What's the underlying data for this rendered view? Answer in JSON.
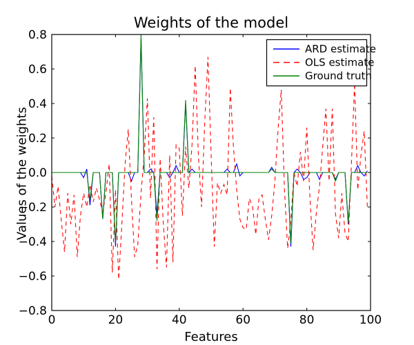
{
  "title": "Weights of the model",
  "chart_data": {
    "type": "line",
    "title": "Weights of the model",
    "xlabel": "Features",
    "ylabel": "Values of the weights",
    "xlim": [
      0,
      100
    ],
    "ylim": [
      -0.8,
      0.8
    ],
    "grid": false,
    "legend_position": "upper right",
    "xticks": {
      "values": [
        0,
        20,
        40,
        60,
        80,
        100
      ],
      "labels": [
        "0",
        "20",
        "40",
        "60",
        "80",
        "100"
      ]
    },
    "yticks": {
      "values": [
        0.8,
        0.6,
        0.4,
        0.2,
        0.0,
        -0.2,
        -0.4,
        -0.6,
        -0.8
      ],
      "labels": [
        "0.8",
        "0.6",
        "0.4",
        "0.2",
        "0.0",
        "−0.2",
        "−0.4",
        "−0.6",
        "−0.8"
      ]
    },
    "x_is_feature_index": true,
    "series": [
      {
        "id": "ard",
        "name": "ARD estimate",
        "color": "#0000ff",
        "style": "solid",
        "values": [
          0,
          0,
          0,
          0,
          0,
          0,
          0,
          0,
          0,
          0,
          -0.03,
          0.02,
          -0.19,
          0,
          0,
          0,
          -0.27,
          0,
          0,
          0,
          -0.43,
          0,
          0,
          0,
          0,
          -0.05,
          0,
          0,
          0.78,
          0,
          0,
          0.02,
          0,
          -0.24,
          0,
          0,
          0,
          -0.03,
          0,
          0.04,
          0,
          0,
          0.4,
          0,
          0.02,
          0,
          0,
          0,
          0,
          0,
          0,
          0,
          0,
          0,
          0,
          0.02,
          0,
          0,
          0.05,
          -0.02,
          0,
          0,
          0,
          0,
          0,
          0,
          0,
          0,
          0,
          0.03,
          0,
          0,
          0,
          0,
          0,
          -0.43,
          0,
          0.02,
          0,
          -0.04,
          -0.03,
          0,
          0,
          0,
          -0.04,
          0,
          0,
          0,
          0,
          -0.04,
          0,
          0,
          0,
          -0.3,
          0,
          0,
          0.04,
          0,
          -0.02,
          0.01
        ]
      },
      {
        "id": "ols",
        "name": "OLS estimate",
        "color": "#ff0000",
        "style": "dashed",
        "values": [
          -0.02,
          -0.2,
          -0.08,
          -0.28,
          -0.46,
          -0.12,
          -0.3,
          -0.13,
          -0.49,
          -0.25,
          -0.12,
          -0.2,
          -0.07,
          -0.17,
          -0.09,
          -0.16,
          -0.23,
          -0.12,
          0.05,
          -0.58,
          -0.1,
          -0.62,
          -0.3,
          0.05,
          0.25,
          -0.15,
          -0.49,
          -0.42,
          -0.12,
          0.1,
          0.43,
          -0.15,
          0.32,
          -0.56,
          0.08,
          -0.3,
          -0.55,
          0.1,
          -0.52,
          0.16,
          0.14,
          -0.25,
          0.15,
          -0.09,
          0.16,
          0.62,
          0.1,
          -0.2,
          0.3,
          0.67,
          0.1,
          -0.43,
          -0.06,
          -0.12,
          -0.07,
          -0.13,
          0.49,
          0.15,
          -0.1,
          -0.27,
          -0.32,
          -0.33,
          -0.15,
          -0.2,
          -0.36,
          -0.15,
          -0.13,
          -0.27,
          -0.39,
          -0.25,
          -0.05,
          0.25,
          0.48,
          -0.1,
          -0.44,
          -0.28,
          0.0,
          -0.08,
          0.12,
          -0.05,
          0.26,
          -0.15,
          -0.45,
          -0.23,
          -0.08,
          0.15,
          0.37,
          -0.05,
          0.37,
          -0.24,
          -0.38,
          -0.12,
          -0.35,
          -0.4,
          0.05,
          0.52,
          -0.1,
          0.1,
          0.24,
          -0.2
        ]
      },
      {
        "id": "truth",
        "name": "Ground truth",
        "color": "#008000",
        "style": "solid",
        "values": [
          0,
          0,
          0,
          0,
          0,
          0,
          0,
          0,
          0,
          0,
          0,
          0,
          -0.16,
          0,
          0,
          0,
          -0.27,
          0,
          0,
          0,
          -0.41,
          0,
          0,
          0,
          0,
          0,
          0,
          0,
          0.8,
          0,
          0,
          0,
          0,
          -0.28,
          0,
          0,
          0,
          0,
          0,
          0,
          0,
          0,
          0.42,
          0,
          0,
          0,
          0,
          0,
          0,
          0,
          0,
          0,
          0,
          0,
          0,
          0,
          0,
          0,
          0,
          0,
          0,
          0,
          0,
          0,
          0,
          0,
          0,
          0,
          0,
          0.02,
          0,
          0,
          0,
          0,
          0,
          -0.41,
          0,
          0,
          0,
          0,
          0,
          0,
          0,
          0,
          0,
          0,
          0,
          0,
          0,
          -0.05,
          0,
          0,
          0,
          -0.29,
          0,
          0,
          0,
          0,
          0,
          0
        ]
      }
    ]
  }
}
